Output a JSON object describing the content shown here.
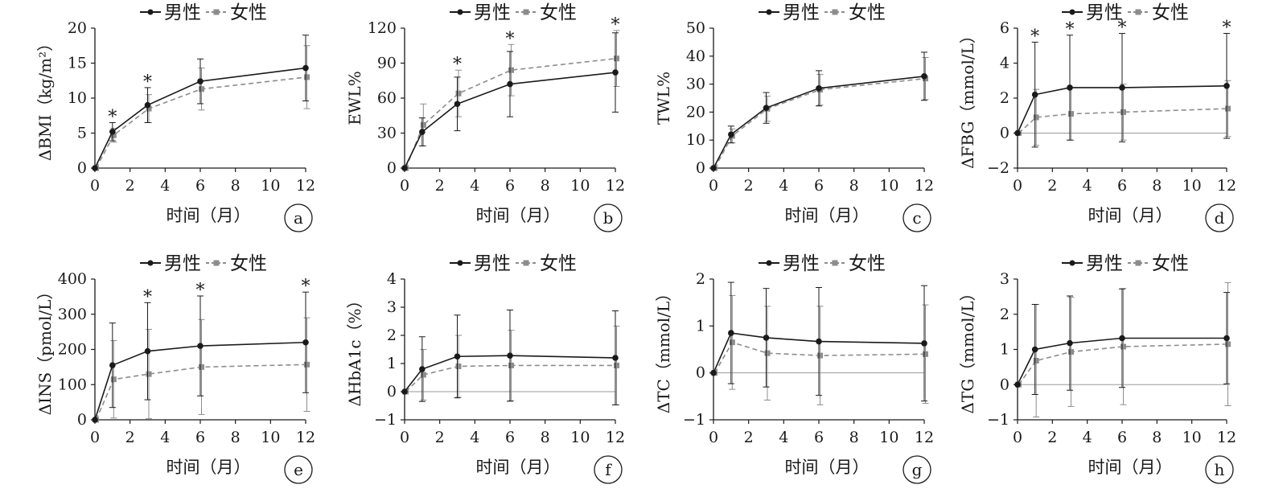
{
  "legend": {
    "male": "男性",
    "female": "女性"
  },
  "colors": {
    "male": "#1a1a1a",
    "female": "#8c8c8c",
    "zero_line": "#9a9a9a"
  },
  "chart_data": [
    {
      "panel": "a",
      "type": "line",
      "ylabel": "ΔBMI（kg/m²）",
      "xlabel": "时间（月）",
      "x": [
        0,
        1,
        3,
        6,
        12
      ],
      "xticks": [
        0,
        2,
        4,
        6,
        8,
        10,
        12
      ],
      "xlim": [
        0,
        12
      ],
      "ylim": [
        0,
        20
      ],
      "yticks": [
        0,
        5,
        10,
        15,
        20
      ],
      "zero_line": false,
      "series": [
        {
          "name": "男性",
          "values": [
            0,
            5.2,
            9.0,
            12.4,
            14.3
          ],
          "err": [
            0,
            1.3,
            2.5,
            3.2,
            4.7
          ]
        },
        {
          "name": "女性",
          "values": [
            0,
            4.7,
            8.5,
            11.3,
            13.0
          ],
          "err": [
            0,
            1.0,
            2.0,
            3.0,
            4.5
          ]
        }
      ],
      "stars": [
        1,
        3
      ]
    },
    {
      "panel": "b",
      "type": "line",
      "ylabel": "EWL%",
      "xlabel": "时间（月）",
      "x": [
        0,
        1,
        3,
        6,
        12
      ],
      "xticks": [
        0,
        2,
        4,
        6,
        8,
        10,
        12
      ],
      "xlim": [
        0,
        12
      ],
      "ylim": [
        0,
        120
      ],
      "yticks": [
        0,
        30,
        60,
        90,
        120
      ],
      "zero_line": false,
      "series": [
        {
          "name": "男性",
          "values": [
            0,
            31,
            55,
            72,
            82
          ],
          "err": [
            0,
            12,
            23,
            28,
            34
          ]
        },
        {
          "name": "女性",
          "values": [
            0,
            37,
            64,
            84,
            94
          ],
          "err": [
            0,
            18,
            20,
            22,
            24
          ]
        }
      ],
      "stars": [
        3,
        6,
        12
      ]
    },
    {
      "panel": "c",
      "type": "line",
      "ylabel": "TWL%",
      "xlabel": "时间（月）",
      "x": [
        0,
        1,
        3,
        6,
        12
      ],
      "xticks": [
        0,
        2,
        4,
        6,
        8,
        10,
        12
      ],
      "xlim": [
        0,
        12
      ],
      "ylim": [
        0,
        50
      ],
      "yticks": [
        0,
        10,
        20,
        30,
        40,
        50
      ],
      "zero_line": false,
      "series": [
        {
          "name": "男性",
          "values": [
            0,
            12,
            21.5,
            28.5,
            32.8
          ],
          "err": [
            0,
            3,
            5.5,
            6.3,
            8.6
          ]
        },
        {
          "name": "女性",
          "values": [
            0,
            11.5,
            21.2,
            28.0,
            32.0
          ],
          "err": [
            0,
            2.5,
            4.5,
            5.5,
            7.5
          ]
        }
      ],
      "stars": []
    },
    {
      "panel": "d",
      "type": "line",
      "ylabel": "ΔFBG（mmol/L）",
      "xlabel": "时间（月）",
      "x": [
        0,
        1,
        3,
        6,
        12
      ],
      "xticks": [
        0,
        2,
        4,
        6,
        8,
        10,
        12
      ],
      "xlim": [
        0,
        12
      ],
      "ylim": [
        -2,
        6
      ],
      "yticks": [
        -2,
        0,
        2,
        4,
        6
      ],
      "zero_line": true,
      "series": [
        {
          "name": "男性",
          "values": [
            0,
            2.2,
            2.6,
            2.6,
            2.7
          ],
          "err": [
            0,
            3.0,
            3.0,
            3.1,
            3.0
          ]
        },
        {
          "name": "女性",
          "values": [
            0,
            0.9,
            1.1,
            1.2,
            1.4
          ],
          "err": [
            0,
            1.6,
            1.5,
            1.6,
            1.6
          ]
        }
      ],
      "stars": [
        1,
        3,
        6,
        12
      ]
    },
    {
      "panel": "e",
      "type": "line",
      "ylabel": "ΔINS（pmol/L）",
      "xlabel": "时间（月）",
      "x": [
        0,
        1,
        3,
        6,
        12
      ],
      "xticks": [
        0,
        2,
        4,
        6,
        8,
        10,
        12
      ],
      "xlim": [
        0,
        12
      ],
      "ylim": [
        0,
        400
      ],
      "yticks": [
        0,
        100,
        200,
        300,
        400
      ],
      "zero_line": false,
      "series": [
        {
          "name": "男性",
          "values": [
            0,
            155,
            195,
            210,
            220
          ],
          "err": [
            0,
            120,
            138,
            142,
            143
          ]
        },
        {
          "name": "女性",
          "values": [
            0,
            115,
            130,
            150,
            157
          ],
          "err": [
            0,
            110,
            127,
            135,
            133
          ]
        }
      ],
      "stars": [
        3,
        6,
        12
      ]
    },
    {
      "panel": "f",
      "type": "line",
      "ylabel": "ΔHbA1c（%）",
      "xlabel": "时间（月）",
      "x": [
        0,
        1,
        3,
        6,
        12
      ],
      "xticks": [
        0,
        2,
        4,
        6,
        8,
        10,
        12
      ],
      "xlim": [
        0,
        12
      ],
      "ylim": [
        -1,
        4
      ],
      "yticks": [
        -1,
        0,
        1,
        2,
        3,
        4
      ],
      "zero_line": true,
      "series": [
        {
          "name": "男性",
          "values": [
            0,
            0.8,
            1.25,
            1.28,
            1.2
          ],
          "err": [
            0,
            1.15,
            1.47,
            1.62,
            1.67
          ]
        },
        {
          "name": "女性",
          "values": [
            0,
            0.6,
            0.9,
            0.93,
            0.93
          ],
          "err": [
            0,
            0.9,
            1.1,
            1.25,
            1.4
          ]
        }
      ],
      "stars": []
    },
    {
      "panel": "g",
      "type": "line",
      "ylabel": "ΔTC（mmol/L）",
      "xlabel": "时间（月）",
      "x": [
        0,
        1,
        3,
        6,
        12
      ],
      "xticks": [
        0,
        2,
        4,
        6,
        8,
        10,
        12
      ],
      "xlim": [
        0,
        12
      ],
      "ylim": [
        -1,
        2
      ],
      "yticks": [
        -1,
        0,
        1,
        2
      ],
      "zero_line": true,
      "series": [
        {
          "name": "男性",
          "values": [
            0,
            0.85,
            0.75,
            0.67,
            0.63
          ],
          "err": [
            0,
            1.08,
            1.05,
            1.15,
            1.23
          ]
        },
        {
          "name": "女性",
          "values": [
            0,
            0.65,
            0.42,
            0.37,
            0.4
          ],
          "err": [
            0,
            1.0,
            1.0,
            1.05,
            1.05
          ]
        }
      ],
      "stars": []
    },
    {
      "panel": "h",
      "type": "line",
      "ylabel": "ΔTG（mmol/L）",
      "xlabel": "时间（月）",
      "x": [
        0,
        1,
        3,
        6,
        12
      ],
      "xticks": [
        0,
        2,
        4,
        6,
        8,
        10,
        12
      ],
      "xlim": [
        0,
        12
      ],
      "ylim": [
        -1,
        3
      ],
      "yticks": [
        -1,
        0,
        1,
        2,
        3
      ],
      "zero_line": true,
      "series": [
        {
          "name": "男性",
          "values": [
            0,
            1.0,
            1.18,
            1.32,
            1.32
          ],
          "err": [
            0,
            1.28,
            1.34,
            1.4,
            1.3
          ]
        },
        {
          "name": "女性",
          "values": [
            0,
            0.68,
            0.93,
            1.08,
            1.15
          ],
          "err": [
            0,
            1.6,
            1.55,
            1.65,
            1.75
          ]
        }
      ],
      "stars": []
    }
  ]
}
